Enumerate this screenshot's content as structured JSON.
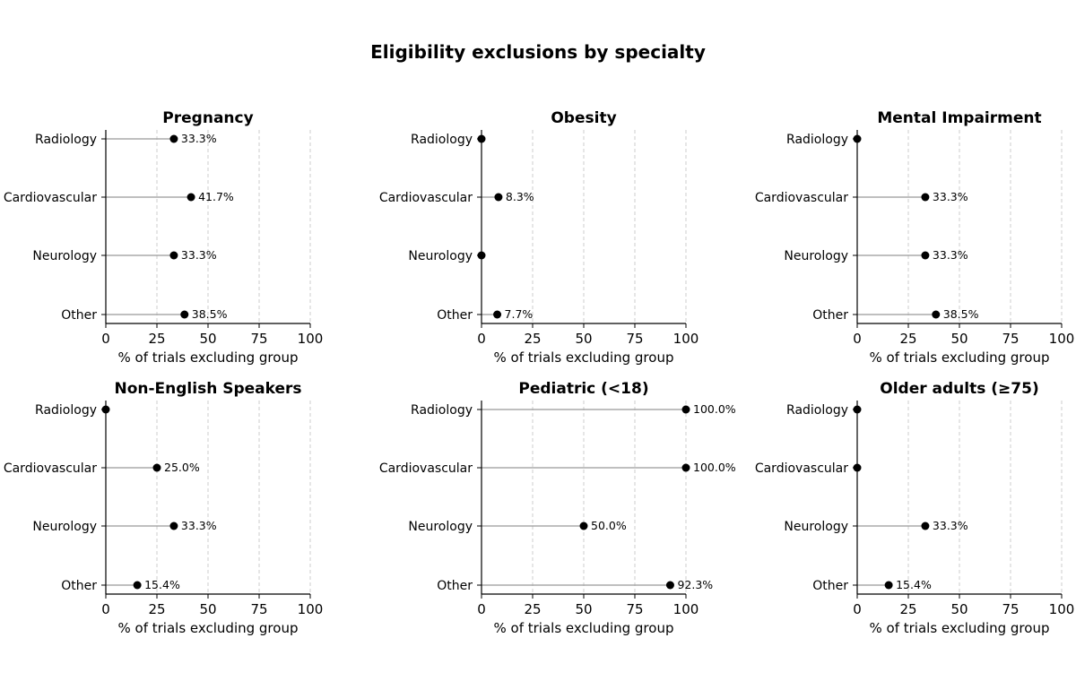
{
  "title": "Eligibility exclusions by specialty",
  "chart_data": {
    "type": "scatter",
    "style": "lollipop",
    "categories": [
      "Radiology",
      "Cardiovascular",
      "Neurology",
      "Other"
    ],
    "xlabel": "% of trials excluding group",
    "xlim": [
      0,
      100
    ],
    "xticks": [
      0,
      25,
      50,
      75,
      100
    ],
    "grid": "vertical dashed",
    "colors": {
      "marker": "#000000",
      "stem": "#999999",
      "grid": "#cccccc"
    },
    "panels": [
      {
        "title": "Pregnancy",
        "values": [
          33.3,
          41.7,
          33.3,
          38.5
        ],
        "labels": [
          "33.3%",
          "41.7%",
          "33.3%",
          "38.5%"
        ]
      },
      {
        "title": "Obesity",
        "values": [
          0,
          8.3,
          0,
          7.7
        ],
        "labels": [
          "",
          "8.3%",
          "",
          "7.7%"
        ]
      },
      {
        "title": "Mental Impairment",
        "values": [
          0,
          33.3,
          33.3,
          38.5
        ],
        "labels": [
          "",
          "33.3%",
          "33.3%",
          "38.5%"
        ]
      },
      {
        "title": "Non-English Speakers",
        "values": [
          0,
          25.0,
          33.3,
          15.4
        ],
        "labels": [
          "",
          "25.0%",
          "33.3%",
          "15.4%"
        ]
      },
      {
        "title": "Pediatric (<18)",
        "values": [
          100.0,
          100.0,
          50.0,
          92.3
        ],
        "labels": [
          "100.0%",
          "100.0%",
          "50.0%",
          "92.3%"
        ]
      },
      {
        "title": "Older adults (≥75)",
        "values": [
          0,
          0,
          33.3,
          15.4
        ],
        "labels": [
          "",
          "",
          "33.3%",
          "15.4%"
        ]
      }
    ]
  }
}
